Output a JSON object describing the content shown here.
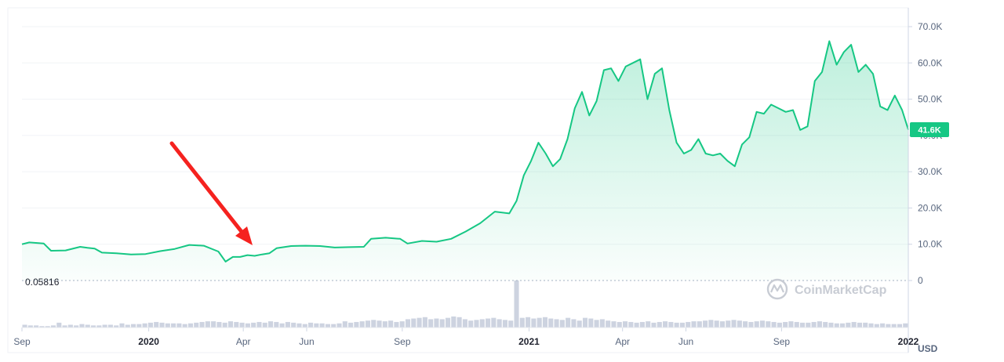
{
  "chart_data": {
    "type": "area",
    "unit": "USD",
    "baseline_label": "0.05816",
    "current_price_label": "41.6K",
    "watermark": "CoinMarketCap",
    "y_ticks": [
      {
        "value": 0,
        "label": "0"
      },
      {
        "value": 10000,
        "label": "10.0K"
      },
      {
        "value": 20000,
        "label": "20.0K"
      },
      {
        "value": 30000,
        "label": "30.0K"
      },
      {
        "value": 40000,
        "label": "40.0K"
      },
      {
        "value": 50000,
        "label": "50.0K"
      },
      {
        "value": 60000,
        "label": "60.0K"
      },
      {
        "value": 70000,
        "label": "70.0K"
      }
    ],
    "ylim": [
      0,
      70000
    ],
    "x_range": [
      "2019-09-01",
      "2022-01-01"
    ],
    "x_ticks": [
      {
        "date": "2019-09-01",
        "label": "Sep",
        "bold": false
      },
      {
        "date": "2020-01-01",
        "label": "2020",
        "bold": true
      },
      {
        "date": "2020-04-01",
        "label": "Apr",
        "bold": false
      },
      {
        "date": "2020-06-01",
        "label": "Jun",
        "bold": false
      },
      {
        "date": "2020-09-01",
        "label": "Sep",
        "bold": false
      },
      {
        "date": "2021-01-01",
        "label": "2021",
        "bold": true
      },
      {
        "date": "2021-04-01",
        "label": "Apr",
        "bold": false
      },
      {
        "date": "2021-06-01",
        "label": "Jun",
        "bold": false
      },
      {
        "date": "2021-09-01",
        "label": "Sep",
        "bold": false
      },
      {
        "date": "2022-01-01",
        "label": "2022",
        "bold": true
      }
    ],
    "grid": true,
    "line_color": "#16c784",
    "series": [
      {
        "points": [
          [
            "2019-09-01",
            10000
          ],
          [
            "2019-09-08",
            10500
          ],
          [
            "2019-09-22",
            10200
          ],
          [
            "2019-09-29",
            8200
          ],
          [
            "2019-10-13",
            8300
          ],
          [
            "2019-10-27",
            9300
          ],
          [
            "2019-11-03",
            9000
          ],
          [
            "2019-11-10",
            8800
          ],
          [
            "2019-11-17",
            7700
          ],
          [
            "2019-12-01",
            7500
          ],
          [
            "2019-12-15",
            7200
          ],
          [
            "2019-12-29",
            7300
          ],
          [
            "2020-01-12",
            8100
          ],
          [
            "2020-01-26",
            8700
          ],
          [
            "2020-02-09",
            9800
          ],
          [
            "2020-02-23",
            9600
          ],
          [
            "2020-03-08",
            8000
          ],
          [
            "2020-03-15",
            5200
          ],
          [
            "2020-03-22",
            6500
          ],
          [
            "2020-03-29",
            6500
          ],
          [
            "2020-04-05",
            7000
          ],
          [
            "2020-04-12",
            6800
          ],
          [
            "2020-04-19",
            7200
          ],
          [
            "2020-04-26",
            7500
          ],
          [
            "2020-05-03",
            8900
          ],
          [
            "2020-05-17",
            9500
          ],
          [
            "2020-05-31",
            9600
          ],
          [
            "2020-06-14",
            9500
          ],
          [
            "2020-06-28",
            9100
          ],
          [
            "2020-07-12",
            9200
          ],
          [
            "2020-07-26",
            9300
          ],
          [
            "2020-08-02",
            11500
          ],
          [
            "2020-08-16",
            11800
          ],
          [
            "2020-08-30",
            11500
          ],
          [
            "2020-09-06",
            10200
          ],
          [
            "2020-09-20",
            10900
          ],
          [
            "2020-10-04",
            10700
          ],
          [
            "2020-10-18",
            11500
          ],
          [
            "2020-11-01",
            13500
          ],
          [
            "2020-11-15",
            15800
          ],
          [
            "2020-11-29",
            19000
          ],
          [
            "2020-12-13",
            18500
          ],
          [
            "2020-12-20",
            22000
          ],
          [
            "2020-12-27",
            29000
          ],
          [
            "2021-01-03",
            33000
          ],
          [
            "2021-01-10",
            38000
          ],
          [
            "2021-01-17",
            35000
          ],
          [
            "2021-01-24",
            31500
          ],
          [
            "2021-01-31",
            33500
          ],
          [
            "2021-02-07",
            39000
          ],
          [
            "2021-02-14",
            47500
          ],
          [
            "2021-02-21",
            52000
          ],
          [
            "2021-02-28",
            45500
          ],
          [
            "2021-03-07",
            49500
          ],
          [
            "2021-03-14",
            58000
          ],
          [
            "2021-03-21",
            58500
          ],
          [
            "2021-03-28",
            55000
          ],
          [
            "2021-04-04",
            59000
          ],
          [
            "2021-04-11",
            60000
          ],
          [
            "2021-04-18",
            61000
          ],
          [
            "2021-04-25",
            50000
          ],
          [
            "2021-05-02",
            57000
          ],
          [
            "2021-05-09",
            58500
          ],
          [
            "2021-05-16",
            47000
          ],
          [
            "2021-05-23",
            38000
          ],
          [
            "2021-05-30",
            35000
          ],
          [
            "2021-06-06",
            36000
          ],
          [
            "2021-06-13",
            39000
          ],
          [
            "2021-06-20",
            35000
          ],
          [
            "2021-06-27",
            34500
          ],
          [
            "2021-07-04",
            35000
          ],
          [
            "2021-07-11",
            33000
          ],
          [
            "2021-07-18",
            31500
          ],
          [
            "2021-07-25",
            37500
          ],
          [
            "2021-08-01",
            39500
          ],
          [
            "2021-08-08",
            46500
          ],
          [
            "2021-08-15",
            46000
          ],
          [
            "2021-08-22",
            48500
          ],
          [
            "2021-08-29",
            47500
          ],
          [
            "2021-09-05",
            46500
          ],
          [
            "2021-09-12",
            47000
          ],
          [
            "2021-09-19",
            41500
          ],
          [
            "2021-09-26",
            42500
          ],
          [
            "2021-10-03",
            55000
          ],
          [
            "2021-10-10",
            57500
          ],
          [
            "2021-10-17",
            66000
          ],
          [
            "2021-10-24",
            59500
          ],
          [
            "2021-10-31",
            63000
          ],
          [
            "2021-11-07",
            65000
          ],
          [
            "2021-11-14",
            57500
          ],
          [
            "2021-11-21",
            59500
          ],
          [
            "2021-11-28",
            57000
          ],
          [
            "2021-12-05",
            48000
          ],
          [
            "2021-12-12",
            47000
          ],
          [
            "2021-12-19",
            51000
          ],
          [
            "2021-12-26",
            47000
          ],
          [
            "2022-01-01",
            41600
          ]
        ]
      }
    ],
    "volume_bars": [
      4,
      3,
      3,
      2,
      2,
      3,
      7,
      3,
      4,
      3,
      5,
      4,
      3,
      3,
      4,
      4,
      3,
      6,
      4,
      5,
      5,
      6,
      7,
      8,
      7,
      6,
      6,
      6,
      5,
      6,
      7,
      8,
      9,
      9,
      8,
      7,
      9,
      8,
      7,
      6,
      7,
      8,
      7,
      9,
      8,
      6,
      8,
      7,
      6,
      5,
      7,
      6,
      6,
      5,
      5,
      6,
      9,
      7,
      8,
      9,
      10,
      11,
      10,
      9,
      10,
      8,
      9,
      12,
      13,
      14,
      15,
      12,
      13,
      12,
      14,
      16,
      15,
      12,
      10,
      11,
      12,
      13,
      14,
      12,
      11,
      10,
      68,
      14,
      15,
      13,
      14,
      15,
      13,
      12,
      11,
      14,
      12,
      10,
      14,
      13,
      11,
      12,
      10,
      9,
      8,
      9,
      8,
      7,
      8,
      9,
      7,
      8,
      9,
      8,
      7,
      7,
      8,
      9,
      9,
      10,
      11,
      10,
      9,
      10,
      11,
      10,
      9,
      8,
      9,
      10,
      9,
      8,
      7,
      8,
      9,
      8,
      7,
      7,
      8,
      9,
      8,
      7,
      6,
      6,
      7,
      8,
      7,
      7,
      6,
      5,
      6,
      5,
      5,
      5,
      6
    ]
  }
}
